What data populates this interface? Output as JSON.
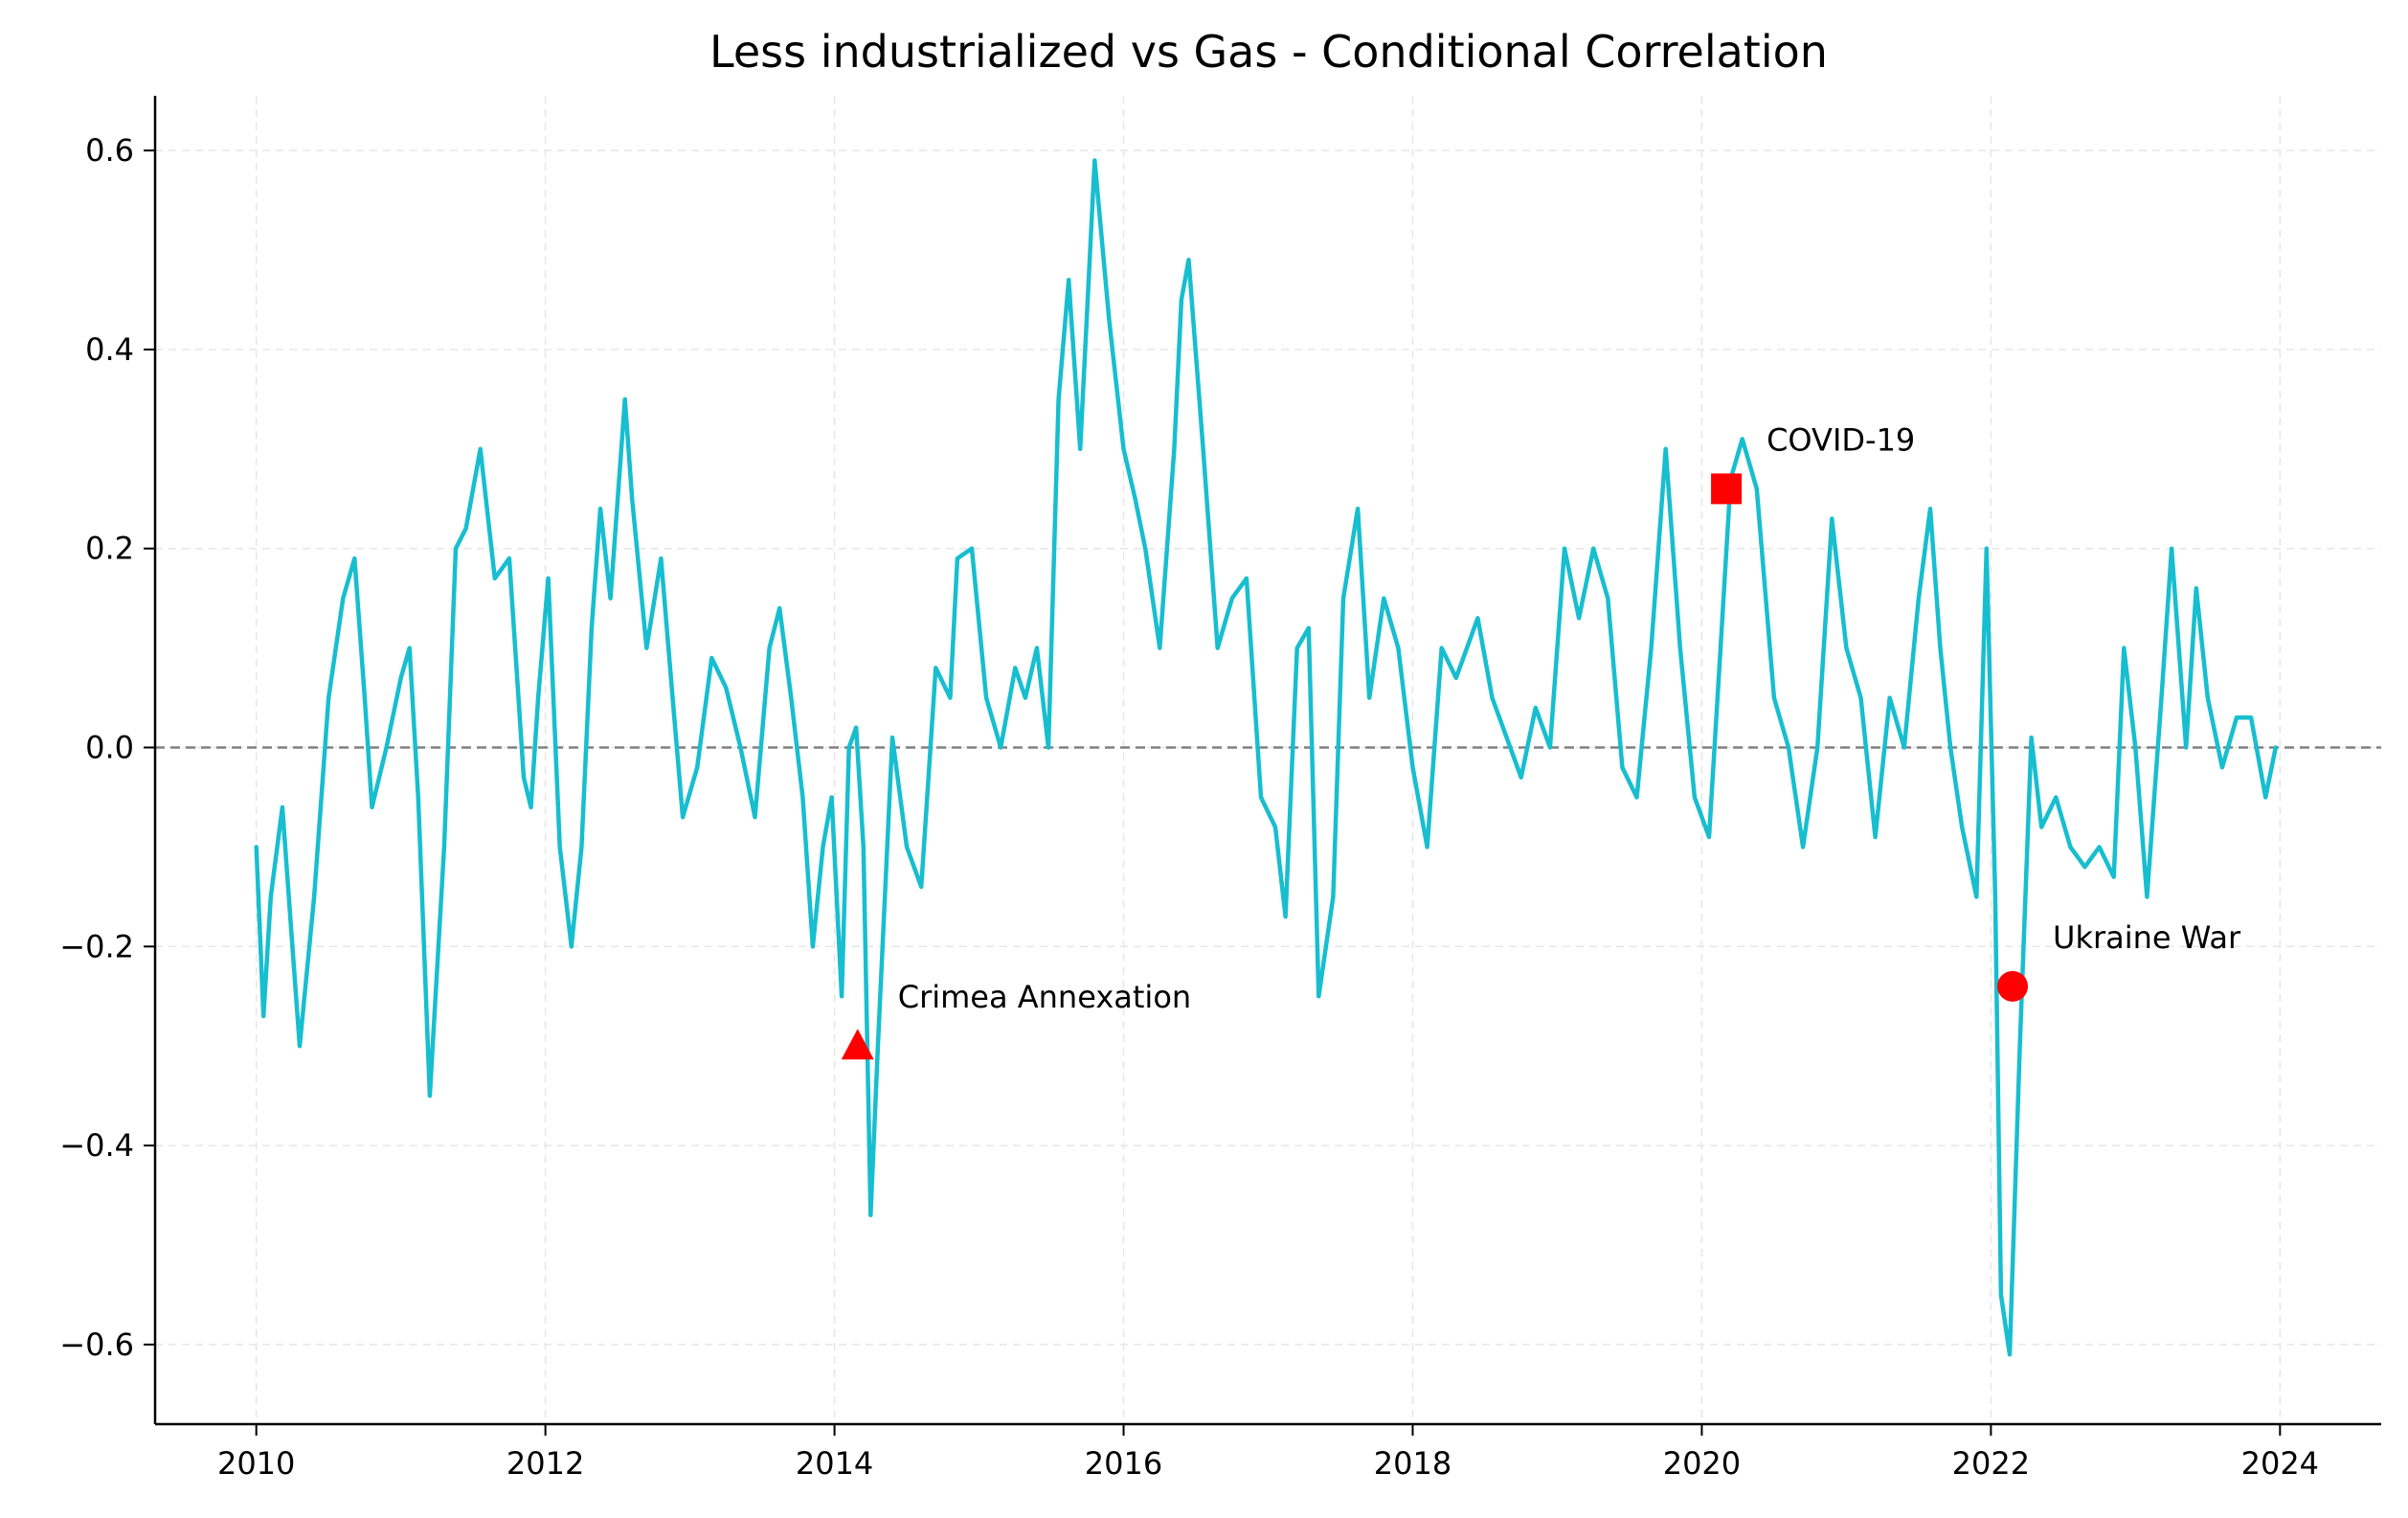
{
  "chart_data": {
    "type": "line",
    "title": "Less industrialized vs Gas - Conditional Correlation",
    "xlabel": "",
    "ylabel": "",
    "xlim": [
      2009.3,
      2024.7
    ],
    "ylim": [
      -0.68,
      0.655
    ],
    "x_ticks": [
      2010,
      2012,
      2014,
      2016,
      2018,
      2020,
      2022,
      2024
    ],
    "x_tick_labels": [
      "2010",
      "2012",
      "2014",
      "2016",
      "2018",
      "2020",
      "2022",
      "2024"
    ],
    "y_ticks": [
      -0.6,
      -0.4,
      -0.2,
      0.0,
      0.2,
      0.4,
      0.6
    ],
    "y_tick_labels": [
      "−0.6",
      "−0.4",
      "−0.2",
      "0.0",
      "0.2",
      "0.4",
      "0.6"
    ],
    "grid": true,
    "reference_line": {
      "y": 0.0,
      "style": "dashed",
      "color": "#808080"
    },
    "colors": {
      "line": "#17becf",
      "markers": "#ff0000"
    },
    "series": [
      {
        "x": [
          2010.0,
          2010.05,
          2010.1,
          2010.18,
          2010.25,
          2010.3,
          2010.4,
          2010.5,
          2010.6,
          2010.68,
          2010.75,
          2010.8,
          2010.9,
          2011.0,
          2011.06,
          2011.12,
          2011.2,
          2011.3,
          2011.38,
          2011.45,
          2011.55,
          2011.65,
          2011.75,
          2011.85,
          2011.9,
          2011.95,
          2012.02,
          2012.1,
          2012.18,
          2012.25,
          2012.32,
          2012.38,
          2012.45,
          2012.55,
          2012.6,
          2012.7,
          2012.8,
          2012.88,
          2012.95,
          2013.05,
          2013.15,
          2013.25,
          2013.35,
          2013.45,
          2013.55,
          2013.62,
          2013.7,
          2013.78,
          2013.85,
          2013.92,
          2013.98,
          2014.05,
          2014.1,
          2014.15,
          2014.2,
          2014.25,
          2014.3,
          2014.4,
          2014.5,
          2014.6,
          2014.7,
          2014.8,
          2014.85,
          2014.95,
          2015.05,
          2015.15,
          2015.25,
          2015.32,
          2015.4,
          2015.48,
          2015.55,
          2015.62,
          2015.7,
          2015.8,
          2015.9,
          2016.0,
          2016.08,
          2016.15,
          2016.25,
          2016.35,
          2016.4,
          2016.45,
          2016.55,
          2016.65,
          2016.75,
          2016.85,
          2016.95,
          2017.05,
          2017.12,
          2017.2,
          2017.28,
          2017.35,
          2017.45,
          2017.52,
          2017.62,
          2017.7,
          2017.8,
          2017.9,
          2018.0,
          2018.1,
          2018.2,
          2018.3,
          2018.45,
          2018.55,
          2018.65,
          2018.75,
          2018.85,
          2018.95,
          2019.05,
          2019.15,
          2019.25,
          2019.35,
          2019.45,
          2019.55,
          2019.65,
          2019.75,
          2019.85,
          2019.95,
          2020.05,
          2020.13,
          2020.2,
          2020.28,
          2020.38,
          2020.5,
          2020.6,
          2020.7,
          2020.8,
          2020.9,
          2021.0,
          2021.1,
          2021.2,
          2021.3,
          2021.4,
          2021.5,
          2021.58,
          2021.65,
          2021.72,
          2021.8,
          2021.9,
          2021.97,
          2022.03,
          2022.07,
          2022.13,
          2022.2,
          2022.28,
          2022.35,
          2022.45,
          2022.55,
          2022.65,
          2022.75,
          2022.85,
          2022.92,
          2023.0,
          2023.08,
          2023.18,
          2023.25,
          2023.35,
          2023.42,
          2023.5,
          2023.6,
          2023.7,
          2023.8,
          2023.9,
          2023.97
        ],
        "y": [
          -0.1,
          -0.27,
          -0.15,
          -0.06,
          -0.2,
          -0.3,
          -0.15,
          0.05,
          0.15,
          0.19,
          0.05,
          -0.06,
          0.0,
          0.07,
          0.1,
          -0.05,
          -0.35,
          -0.1,
          0.2,
          0.22,
          0.3,
          0.17,
          0.19,
          -0.03,
          -0.06,
          0.05,
          0.17,
          -0.1,
          -0.2,
          -0.1,
          0.12,
          0.24,
          0.15,
          0.35,
          0.25,
          0.1,
          0.19,
          0.05,
          -0.07,
          -0.02,
          0.09,
          0.06,
          0.0,
          -0.07,
          0.1,
          0.14,
          0.05,
          -0.05,
          -0.2,
          -0.1,
          -0.05,
          -0.25,
          0.0,
          0.02,
          -0.1,
          -0.47,
          -0.3,
          0.01,
          -0.1,
          -0.14,
          0.08,
          0.05,
          0.19,
          0.2,
          0.05,
          0.0,
          0.08,
          0.05,
          0.1,
          0.0,
          0.35,
          0.47,
          0.3,
          0.59,
          0.43,
          0.3,
          0.25,
          0.2,
          0.1,
          0.3,
          0.45,
          0.49,
          0.3,
          0.1,
          0.15,
          0.17,
          -0.05,
          -0.08,
          -0.17,
          0.1,
          0.12,
          -0.25,
          -0.15,
          0.15,
          0.24,
          0.05,
          0.15,
          0.1,
          -0.02,
          -0.1,
          0.1,
          0.07,
          0.13,
          0.05,
          0.01,
          -0.03,
          0.04,
          0.0,
          0.2,
          0.13,
          0.2,
          0.15,
          -0.02,
          -0.05,
          0.1,
          0.3,
          0.1,
          -0.05,
          -0.09,
          0.1,
          0.27,
          0.31,
          0.26,
          0.05,
          0.0,
          -0.1,
          0.0,
          0.23,
          0.1,
          0.05,
          -0.09,
          0.05,
          0.0,
          0.15,
          0.24,
          0.1,
          0.0,
          -0.08,
          -0.15,
          0.2,
          -0.15,
          -0.55,
          -0.61,
          -0.3,
          0.01,
          -0.08,
          -0.05,
          -0.1,
          -0.12,
          -0.1,
          -0.13,
          0.1,
          0.0,
          -0.15,
          0.05,
          0.2,
          0.0,
          0.16,
          0.05,
          -0.02,
          0.03,
          0.03,
          -0.05,
          0.0
        ]
      }
    ],
    "annotations": [
      {
        "label": "Crimea Annexation",
        "x": 2014.16,
        "y": -0.3,
        "marker": "triangle"
      },
      {
        "label": "COVID-19",
        "x": 2020.17,
        "y": 0.26,
        "marker": "square"
      },
      {
        "label": "Ukraine War",
        "x": 2022.15,
        "y": -0.24,
        "marker": "circle"
      }
    ]
  }
}
